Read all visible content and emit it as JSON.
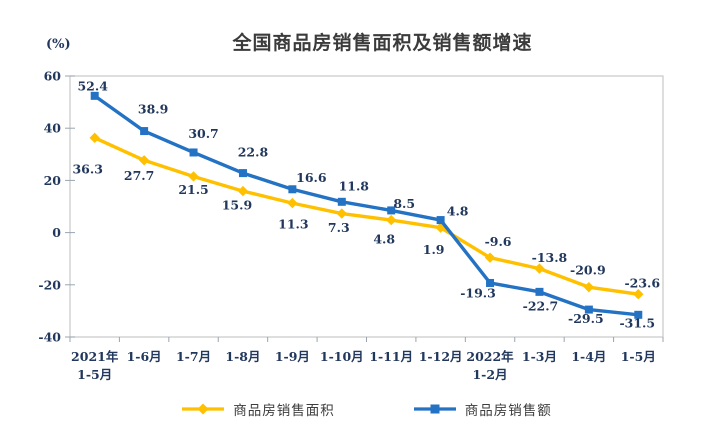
{
  "chart_data": {
    "type": "line",
    "title": "全国商品房销售面积及销售额增速",
    "unit_label": "(%)",
    "categories": [
      "2021年\n1-5月",
      "1-6月",
      "1-7月",
      "1-8月",
      "1-9月",
      "1-10月",
      "1-11月",
      "1-12月",
      "2022年\n1-2月",
      "1-3月",
      "1-4月",
      "1-5月"
    ],
    "series": [
      {
        "name": "商品房销售面积",
        "color": "#FFC000",
        "marker": "diamond",
        "values": [
          36.3,
          27.7,
          21.5,
          15.9,
          11.3,
          7.3,
          4.8,
          1.9,
          -9.6,
          -13.8,
          -20.9,
          -23.6
        ]
      },
      {
        "name": "商品房销售额",
        "color": "#2472C4",
        "marker": "square",
        "values": [
          52.4,
          38.9,
          30.7,
          22.8,
          16.6,
          11.8,
          8.5,
          4.8,
          -19.3,
          -22.7,
          -29.5,
          -31.5
        ]
      }
    ],
    "y_axis": {
      "min": -40,
      "max": 60,
      "ticks": [
        60,
        40,
        20,
        0,
        -20,
        -40
      ]
    },
    "legend_position": "bottom",
    "grid": false
  },
  "colors": {
    "title_text": "#3B3B3B",
    "label_text": "#21375C",
    "legend_text": "#3D3D3D",
    "axis_border": "#C9C9C9",
    "tick_mark": "#9AA5B1"
  }
}
